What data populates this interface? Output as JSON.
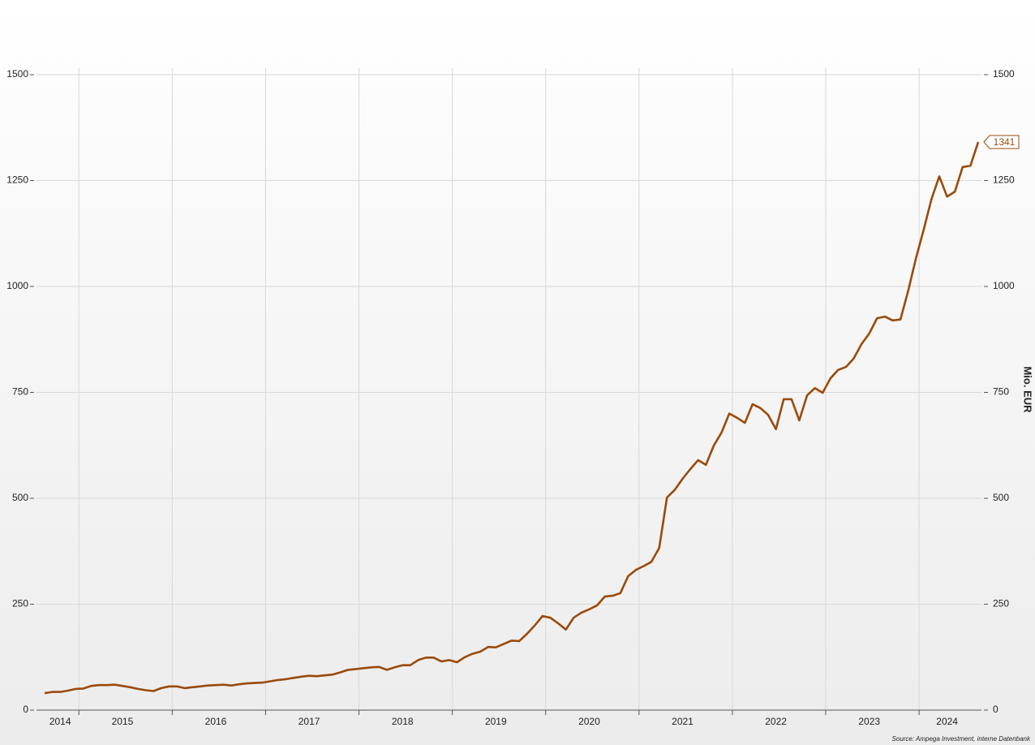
{
  "chart_data": {
    "type": "line",
    "y_label": "Mio. EUR",
    "source": "Source: Ampega Investment, interne Datenbank",
    "categories": [
      null,
      null,
      "2014",
      null,
      null,
      null,
      null,
      null,
      null,
      null,
      "2015",
      null,
      null,
      null,
      null,
      null,
      null,
      null,
      null,
      null,
      null,
      null,
      "2016",
      null,
      null,
      null,
      null,
      null,
      null,
      null,
      null,
      null,
      null,
      null,
      "2017",
      null,
      null,
      null,
      null,
      null,
      null,
      null,
      null,
      null,
      null,
      null,
      "2018",
      null,
      null,
      null,
      null,
      null,
      null,
      null,
      null,
      null,
      null,
      null,
      "2019",
      null,
      null,
      null,
      null,
      null,
      null,
      null,
      null,
      null,
      null,
      null,
      "2020",
      null,
      null,
      null,
      null,
      null,
      null,
      null,
      null,
      null,
      null,
      null,
      "2021",
      null,
      null,
      null,
      null,
      null,
      null,
      null,
      null,
      null,
      null,
      null,
      "2022",
      null,
      null,
      null,
      null,
      null,
      null,
      null,
      null,
      null,
      null,
      null,
      "2023",
      null,
      null,
      null,
      null,
      null,
      null,
      null,
      null,
      null,
      "2024",
      null,
      null,
      null,
      null
    ],
    "series": [
      {
        "color": "#9a4a0b",
        "values": [
          40,
          43,
          43,
          46,
          50,
          51,
          57,
          59,
          59,
          60,
          57,
          54,
          50,
          47,
          45,
          52,
          56,
          56,
          52,
          54,
          56,
          58,
          59,
          60,
          58,
          61,
          63,
          64,
          65,
          68,
          71,
          73,
          76,
          79,
          81,
          80,
          82,
          84,
          89,
          95,
          97,
          99,
          101,
          102,
          95,
          101,
          106,
          106,
          118,
          124,
          124,
          115,
          118,
          113,
          125,
          133,
          138,
          149,
          148,
          156,
          164,
          163,
          180,
          200,
          222,
          218,
          205,
          190,
          218,
          230,
          238,
          247,
          268,
          270,
          276,
          316,
          331,
          340,
          350,
          383,
          502,
          520,
          546,
          569,
          590,
          579,
          624,
          655,
          700,
          690,
          678,
          722,
          713,
          697,
          663,
          734,
          734,
          684,
          743,
          760,
          749,
          783,
          803,
          810,
          830,
          864,
          889,
          925,
          929,
          920,
          922,
          990,
          1067,
          1135,
          1207,
          1260,
          1212,
          1224,
          1282,
          1285,
          1341
        ]
      }
    ],
    "ylim": [
      0,
      1500
    ],
    "yticks": [
      0,
      250,
      500,
      750,
      1000,
      1250,
      1500
    ],
    "grid": true
  }
}
